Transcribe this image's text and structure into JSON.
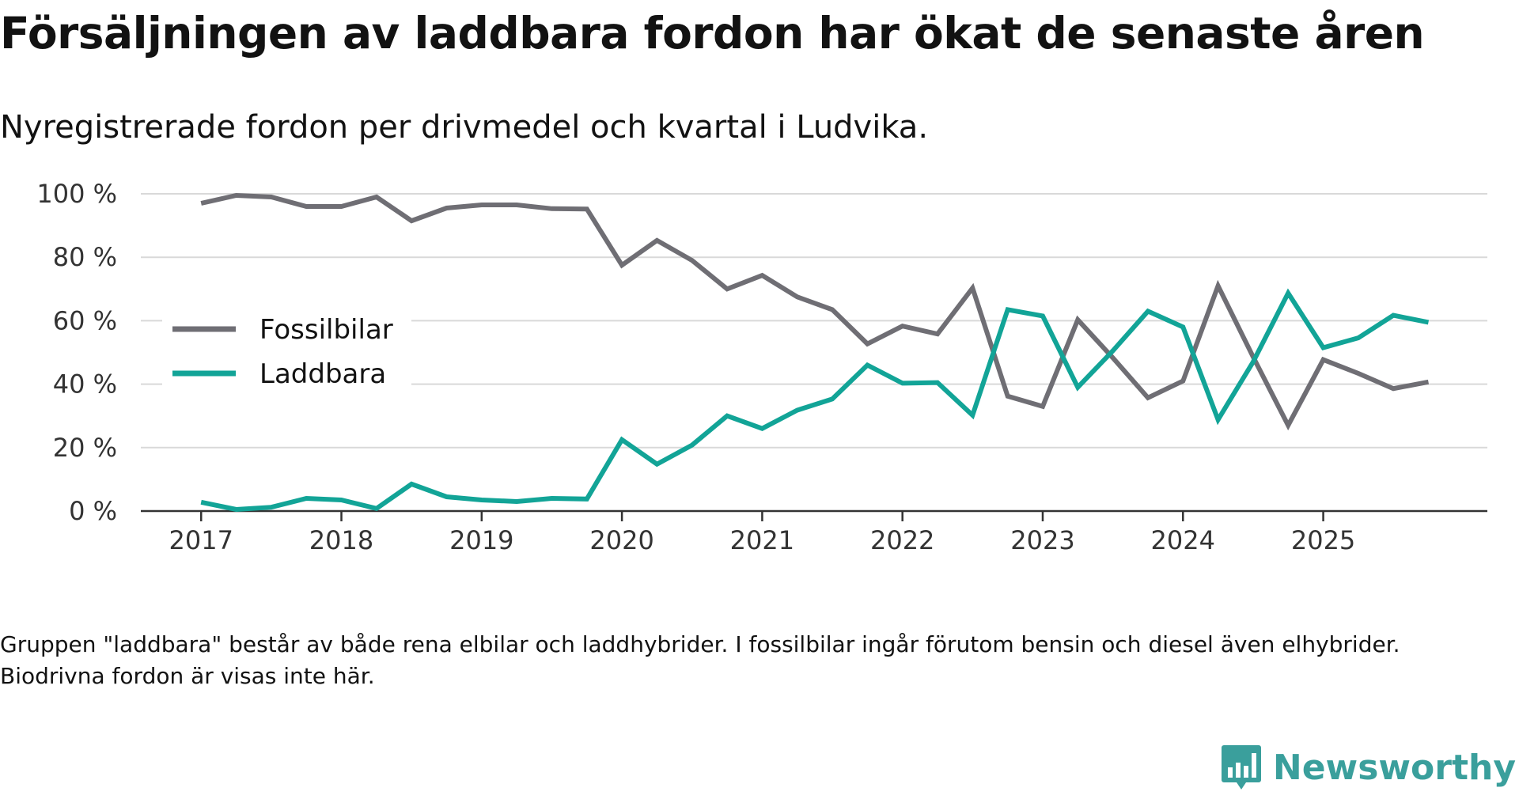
{
  "header": {
    "title": "Försäljningen av laddbara fordon har ökat de senaste åren",
    "subtitle": "Nyregistrerade fordon per drivmedel och kvartal i Ludvika."
  },
  "footnote": "Gruppen \"laddbara\" består av både rena elbilar och laddhybrider. I fossilbilar ingår förutom bensin och diesel även elhybrider. Biodrivna fordon är visas inte här.",
  "brand": {
    "name": "Newsworthy",
    "icon": "newsworthy-logo-icon",
    "color": "#3a9f9c"
  },
  "chart_data": {
    "type": "line",
    "title": "Försäljningen av laddbara fordon har ökat de senaste åren",
    "subtitle": "Nyregistrerade fordon per drivmedel och kvartal i Ludvika.",
    "xlabel": "",
    "ylabel": "",
    "x": [
      2017.0,
      2017.25,
      2017.5,
      2017.75,
      2018.0,
      2018.25,
      2018.5,
      2018.75,
      2019.0,
      2019.25,
      2019.5,
      2019.75,
      2020.0,
      2020.25,
      2020.5,
      2020.75,
      2021.0,
      2021.25,
      2021.5,
      2021.75,
      2022.0,
      2022.25,
      2022.5,
      2022.75,
      2023.0,
      2023.25,
      2023.5,
      2023.75,
      2024.0,
      2024.25,
      2024.5,
      2024.75,
      2025.0,
      2025.25,
      2025.5,
      2025.75
    ],
    "xlim": [
      2016.57,
      2026.17
    ],
    "ylim": [
      0,
      100
    ],
    "xticks": [
      2017,
      2018,
      2019,
      2020,
      2021,
      2022,
      2023,
      2024,
      2025
    ],
    "xtick_labels": [
      "2017",
      "2018",
      "2019",
      "2020",
      "2021",
      "2022",
      "2023",
      "2024",
      "2025"
    ],
    "yticks": [
      0,
      20,
      40,
      60,
      80,
      100
    ],
    "ytick_labels": [
      "0 %",
      "20 %",
      "40 %",
      "60 %",
      "80 %",
      "100 %"
    ],
    "grid": true,
    "legend_position": "left",
    "series": [
      {
        "name": "Fossilbilar",
        "color": "#6f6e74",
        "values": [
          97,
          99.5,
          99,
          96,
          96,
          99,
          91.5,
          95.5,
          96.5,
          96.5,
          95.3,
          95.2,
          77.5,
          85.3,
          79,
          70,
          74.3,
          67.5,
          63.5,
          52.7,
          58.3,
          55.8,
          70.3,
          36.2,
          33,
          60.3,
          48.3,
          35.7,
          41,
          71,
          48.6,
          27,
          47.7,
          43.4,
          38.6,
          40.7
        ]
      },
      {
        "name": "Laddbara",
        "color": "#12a497",
        "values": [
          2.8,
          0.5,
          1.2,
          4,
          3.5,
          0.8,
          8.5,
          4.5,
          3.5,
          3,
          4,
          3.8,
          22.5,
          14.8,
          20.8,
          30,
          26,
          31.8,
          35.3,
          46,
          40.3,
          40.5,
          30.2,
          63.5,
          61.5,
          39,
          50.5,
          63,
          58,
          28.8,
          47,
          68.7,
          51.5,
          54.6,
          61.7,
          59.5
        ]
      }
    ]
  }
}
